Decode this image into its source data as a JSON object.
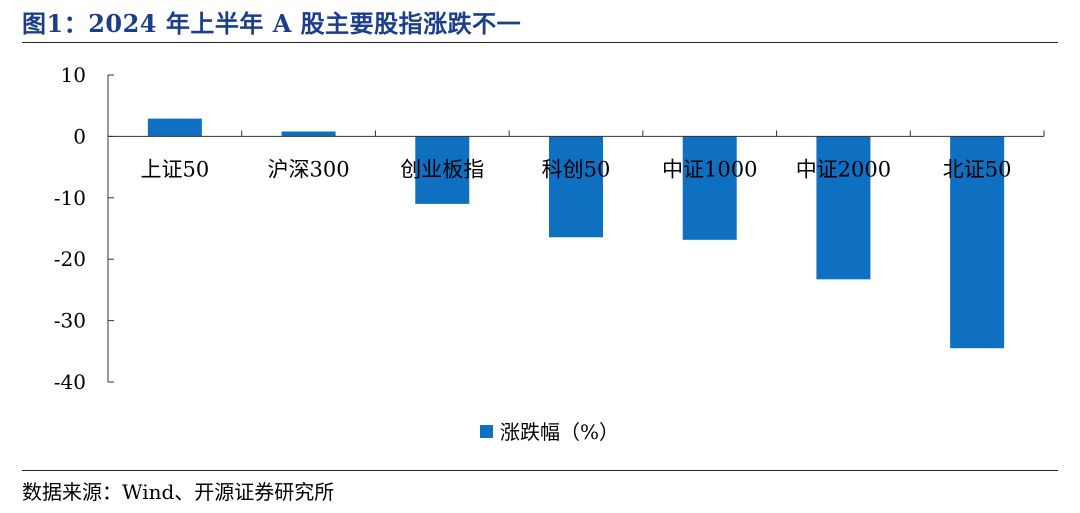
{
  "figure": {
    "title": "图1：2024 年上半年 A 股主要股指涨跌不一",
    "source": "数据来源：Wind、开源证券研究所"
  },
  "colors": {
    "bar": "#0f6fc0",
    "axis": "#333333",
    "title": "#1a3e8c"
  },
  "chart_data": {
    "type": "bar",
    "categories": [
      "上证50",
      "沪深300",
      "创业板指",
      "科创50",
      "中证1000",
      "中证2000",
      "北证50"
    ],
    "series": [
      {
        "name": "涨跌幅（%）",
        "values": [
          2.9,
          0.8,
          -10.99,
          -16.43,
          -16.84,
          -23.28,
          -34.5
        ]
      }
    ],
    "ylim": [
      -40,
      10
    ],
    "yticks": [
      10,
      0,
      -10,
      -20,
      -30,
      -40
    ],
    "grid": false,
    "legend_position": "bottom"
  }
}
